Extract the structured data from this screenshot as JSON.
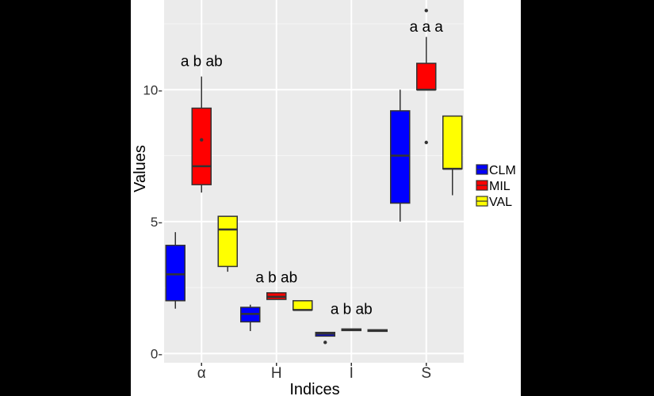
{
  "chart_data": {
    "type": "boxplot",
    "title": "",
    "xlabel": "Indices",
    "ylabel": "Values",
    "ylim": [
      -0.35,
      13.4
    ],
    "yticks": [
      0,
      5,
      10
    ],
    "ytick_labels": [
      "0-",
      "5-",
      "10-"
    ],
    "categories": [
      "α",
      "H",
      "I",
      "S"
    ],
    "grid": true,
    "legend_position": "right",
    "series": [
      {
        "name": "CLM",
        "color": "#0000ff",
        "boxes": [
          {
            "whisker_low": 1.7,
            "q1": 2.0,
            "median": 3.0,
            "q3": 4.1,
            "whisker_high": 4.6,
            "outliers": []
          },
          {
            "whisker_low": 0.85,
            "q1": 1.2,
            "median": 1.5,
            "q3": 1.75,
            "whisker_high": 1.85,
            "outliers": []
          },
          {
            "whisker_low": 0.65,
            "q1": 0.66,
            "median": 0.75,
            "q3": 0.8,
            "whisker_high": 0.82,
            "outliers": [
              0.42
            ]
          },
          {
            "whisker_low": 5.0,
            "q1": 5.7,
            "median": 7.5,
            "q3": 9.2,
            "whisker_high": 10.0,
            "outliers": []
          }
        ]
      },
      {
        "name": "MIL",
        "color": "#ff0000",
        "boxes": [
          {
            "whisker_low": 6.1,
            "q1": 6.4,
            "median": 7.1,
            "q3": 9.3,
            "whisker_high": 10.5,
            "outliers": [
              8.1
            ]
          },
          {
            "whisker_low": 2.05,
            "q1": 2.05,
            "median": 2.15,
            "q3": 2.3,
            "whisker_high": 2.32,
            "outliers": []
          },
          {
            "whisker_low": 0.88,
            "q1": 0.88,
            "median": 0.9,
            "q3": 0.93,
            "whisker_high": 0.94,
            "outliers": []
          },
          {
            "whisker_low": 10.0,
            "q1": 10.0,
            "median": 10.0,
            "q3": 11.0,
            "whisker_high": 12.0,
            "outliers": [
              8.0,
              13.0
            ]
          }
        ]
      },
      {
        "name": "VAL",
        "color": "#ffff00",
        "boxes": [
          {
            "whisker_low": 3.1,
            "q1": 3.3,
            "median": 4.7,
            "q3": 5.2,
            "whisker_high": 5.2,
            "outliers": []
          },
          {
            "whisker_low": 1.65,
            "q1": 1.65,
            "median": 1.65,
            "q3": 2.0,
            "whisker_high": 2.0,
            "outliers": []
          },
          {
            "whisker_low": 0.85,
            "q1": 0.85,
            "median": 0.87,
            "q3": 0.9,
            "whisker_high": 0.9,
            "outliers": []
          },
          {
            "whisker_low": 6.0,
            "q1": 7.0,
            "median": 7.0,
            "q3": 9.0,
            "whisker_high": 9.0,
            "outliers": []
          }
        ]
      }
    ],
    "group_labels": [
      {
        "category": "α",
        "text": "a  b ab",
        "y": 10.9
      },
      {
        "category": "H",
        "text": "a  b ab",
        "y": 2.7
      },
      {
        "category": "I",
        "text": "a  b ab",
        "y": 1.5
      },
      {
        "category": "S",
        "text": "a  a  a",
        "y": 12.2
      }
    ]
  }
}
